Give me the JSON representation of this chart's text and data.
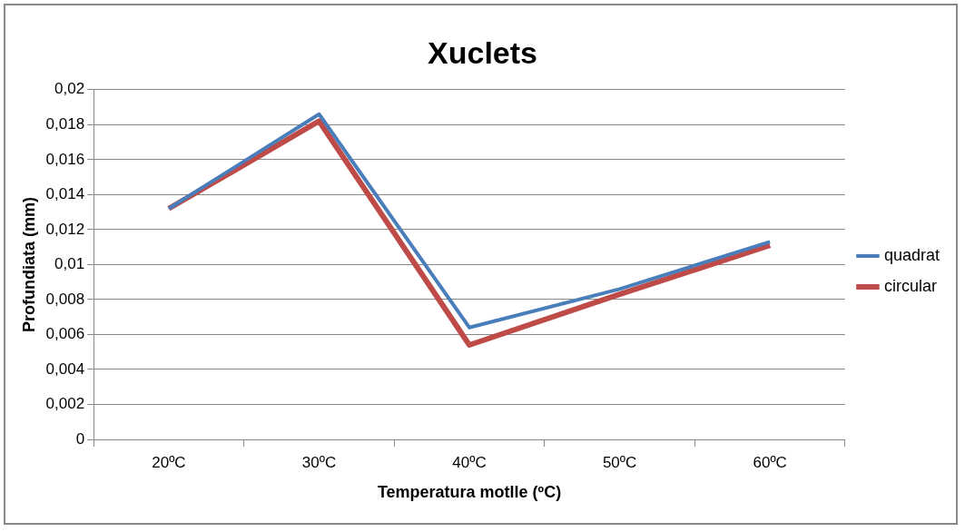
{
  "chart_data": {
    "type": "line",
    "title": "Xuclets",
    "xlabel": "Temperatura motlle (ºC)",
    "ylabel": "Profundiata (mm)",
    "categories": [
      "20ºC",
      "30ºC",
      "40ºC",
      "50ºC",
      "60ºC"
    ],
    "series": [
      {
        "name": "quadrat",
        "color": "#4a7ebb",
        "values": [
          0.0132,
          0.0186,
          0.0064,
          0.0086,
          0.0113
        ]
      },
      {
        "name": "circular",
        "color": "#be4b48",
        "values": [
          0.0132,
          0.0182,
          0.0054,
          0.0083,
          0.0111
        ]
      }
    ],
    "ylim": [
      0,
      0.02
    ],
    "yticks": [
      {
        "value": 0,
        "label": "0"
      },
      {
        "value": 0.002,
        "label": "0,002"
      },
      {
        "value": 0.004,
        "label": "0,004"
      },
      {
        "value": 0.006,
        "label": "0,006"
      },
      {
        "value": 0.008,
        "label": "0,008"
      },
      {
        "value": 0.01,
        "label": "0,01"
      },
      {
        "value": 0.012,
        "label": "0,012"
      },
      {
        "value": 0.014,
        "label": "0,014"
      },
      {
        "value": 0.016,
        "label": "0,016"
      },
      {
        "value": 0.018,
        "label": "0,018"
      },
      {
        "value": 0.02,
        "label": "0,02"
      }
    ],
    "grid": "y",
    "legend": "right",
    "marker": "none",
    "line_style": "solid"
  }
}
